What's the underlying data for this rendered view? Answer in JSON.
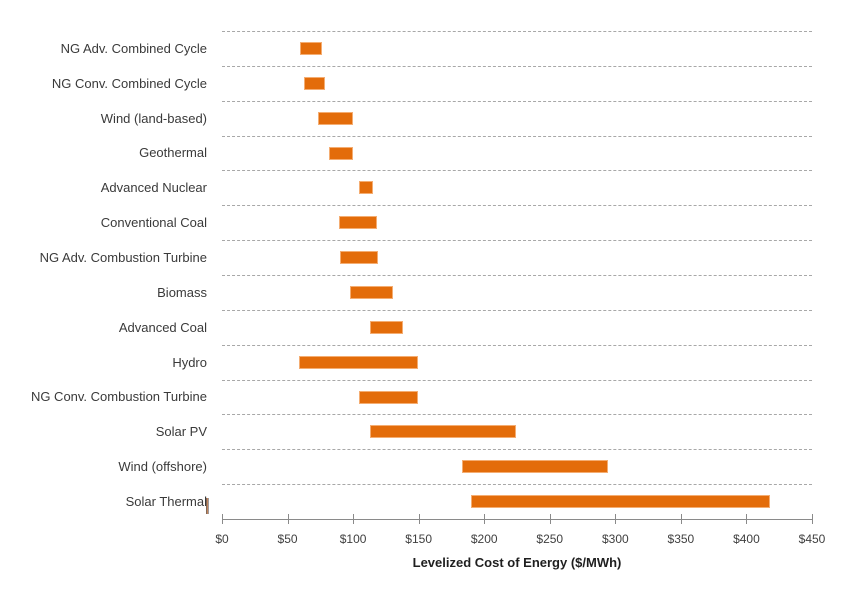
{
  "chart_data": {
    "type": "bar",
    "subtype": "horizontal-range-bars",
    "orientation": "horizontal",
    "title": "",
    "xlabel": "Levelized Cost of Energy ($/MWh)",
    "ylabel": "",
    "xlim": [
      0,
      450
    ],
    "x_tick_step": 50,
    "x_tick_values": [
      0,
      50,
      100,
      150,
      200,
      250,
      300,
      350,
      400,
      450
    ],
    "x_tick_labels": [
      "$0",
      "$50",
      "$100",
      "$150",
      "$200",
      "$250",
      "$300",
      "$350",
      "$400",
      "$450"
    ],
    "grid": "dashed horizontal separators between category rows",
    "legend_position": "none",
    "categories": [
      "NG Adv. Combined Cycle",
      "NG Conv. Combined Cycle",
      "Wind (land-based)",
      "Geothermal",
      "Advanced Nuclear",
      "Conventional Coal",
      "NG Adv. Combustion Turbine",
      "Biomass",
      "Advanced Coal",
      "Hydro",
      "NG Conv. Combustion Turbine",
      "Solar PV",
      "Wind (offshore)",
      "Solar Thermal"
    ],
    "series": [
      {
        "name": "Range minimum ($/MWh)",
        "values": [
          59.5,
          62.5,
          73.5,
          81.4,
          104.4,
          89.5,
          90.3,
          98.0,
          112.6,
          58.4,
          104.3,
          112.5,
          183.0,
          190.2
        ]
      },
      {
        "name": "Range maximum ($/MWh)",
        "values": [
          76.1,
          78.2,
          99.8,
          100.3,
          115.3,
          118.3,
          119.0,
          130.8,
          137.9,
          149.2,
          149.6,
          224.4,
          294.7,
          417.6
        ]
      }
    ]
  },
  "colors": {
    "bar_fill": "#E36C0A",
    "bar_border": "#F4AD72",
    "gridline": "#A8A8A8",
    "axis_line": "#8A8A8A",
    "tick_label": "#404040",
    "category_label": "#3A3A3A",
    "axis_title": "#1F1F1F",
    "background": "#FFFFFF"
  }
}
